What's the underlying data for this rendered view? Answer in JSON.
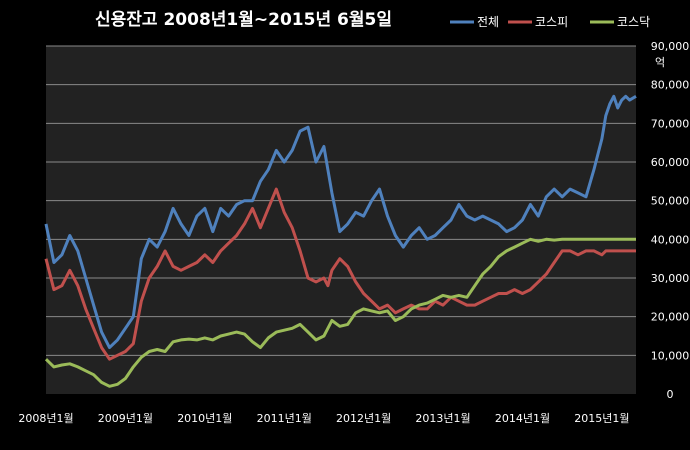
{
  "chart_data": {
    "type": "line",
    "title": "신용잔고 2008년1월~2015년 6월5일",
    "y_unit": "억",
    "ylim": [
      0,
      90000
    ],
    "y_ticks": [
      0,
      10000,
      20000,
      30000,
      40000,
      50000,
      60000,
      70000,
      80000,
      90000
    ],
    "y_tick_labels": [
      "0",
      "10,000",
      "20,000",
      "30,000",
      "40,000",
      "50,000",
      "60,000",
      "70,000",
      "80,000",
      "90,000"
    ],
    "x_tick_labels": [
      "2008년1월",
      "2009년1월",
      "2010년1월",
      "2011년1월",
      "2012년1월",
      "2013년1월",
      "2014년1월",
      "2015년1월"
    ],
    "xlim": [
      2008.0,
      2015.43
    ],
    "grid": true,
    "legend_position": "top-right",
    "x": [
      2008.0,
      2008.1,
      2008.2,
      2008.3,
      2008.4,
      2008.5,
      2008.6,
      2008.7,
      2008.8,
      2008.9,
      2009.0,
      2009.1,
      2009.2,
      2009.3,
      2009.4,
      2009.5,
      2009.6,
      2009.7,
      2009.8,
      2009.9,
      2010.0,
      2010.1,
      2010.2,
      2010.3,
      2010.4,
      2010.5,
      2010.6,
      2010.7,
      2010.8,
      2010.9,
      2011.0,
      2011.1,
      2011.2,
      2011.3,
      2011.4,
      2011.5,
      2011.55,
      2011.6,
      2011.7,
      2011.8,
      2011.9,
      2012.0,
      2012.1,
      2012.2,
      2012.3,
      2012.4,
      2012.5,
      2012.6,
      2012.7,
      2012.8,
      2012.9,
      2013.0,
      2013.1,
      2013.2,
      2013.3,
      2013.4,
      2013.5,
      2013.6,
      2013.7,
      2013.8,
      2013.9,
      2014.0,
      2014.1,
      2014.2,
      2014.3,
      2014.4,
      2014.5,
      2014.6,
      2014.7,
      2014.8,
      2014.9,
      2015.0,
      2015.05,
      2015.1,
      2015.15,
      2015.2,
      2015.25,
      2015.3,
      2015.35,
      2015.43
    ],
    "series": [
      {
        "name": "전체",
        "color": "#4F81BD",
        "values": [
          44000,
          34000,
          36000,
          41000,
          37000,
          30000,
          23000,
          16000,
          12000,
          14000,
          17000,
          20000,
          35000,
          40000,
          38000,
          42000,
          48000,
          44000,
          41000,
          46000,
          48000,
          42000,
          48000,
          46000,
          49000,
          50000,
          50000,
          55000,
          58000,
          63000,
          60000,
          63000,
          68000,
          69000,
          60000,
          64000,
          58000,
          52000,
          42000,
          44000,
          47000,
          46000,
          50000,
          53000,
          46000,
          41000,
          38000,
          41000,
          43000,
          40000,
          41000,
          43000,
          45000,
          49000,
          46000,
          45000,
          46000,
          45000,
          44000,
          42000,
          43000,
          45000,
          49000,
          46000,
          51000,
          53000,
          51000,
          53000,
          52000,
          51000,
          58000,
          66000,
          72000,
          75000,
          77000,
          74000,
          76000,
          77000,
          76000,
          77000
        ]
      },
      {
        "name": "코스피",
        "color": "#C0504D",
        "values": [
          35000,
          27000,
          28000,
          32000,
          28000,
          22000,
          17000,
          12000,
          9000,
          10000,
          11000,
          13000,
          24000,
          30000,
          33000,
          37000,
          33000,
          32000,
          33000,
          34000,
          36000,
          34000,
          37000,
          39000,
          41000,
          44000,
          48000,
          43000,
          48000,
          53000,
          47000,
          43000,
          37000,
          30000,
          29000,
          30000,
          28000,
          32000,
          35000,
          33000,
          29000,
          26000,
          24000,
          22000,
          23000,
          21000,
          22000,
          23000,
          22000,
          22000,
          24000,
          23000,
          25000,
          24000,
          23000,
          23000,
          24000,
          25000,
          26000,
          26000,
          27000,
          26000,
          27000,
          29000,
          31000,
          34000,
          37000,
          37000,
          36000,
          37000,
          37000,
          36000,
          37000,
          37000,
          37000,
          37000,
          37000,
          37000,
          37000,
          37000
        ]
      },
      {
        "name": "코스닥",
        "color": "#9BBB59",
        "values": [
          9000,
          7000,
          7500,
          7800,
          7000,
          6000,
          5000,
          3000,
          2000,
          2500,
          4000,
          7000,
          9500,
          11000,
          11500,
          11000,
          13500,
          14000,
          14200,
          14000,
          14500,
          14000,
          15000,
          15500,
          16000,
          15500,
          13500,
          12000,
          14500,
          16000,
          16500,
          17000,
          18000,
          16000,
          14000,
          15000,
          17000,
          19000,
          17500,
          18000,
          21000,
          22000,
          21500,
          21000,
          21500,
          19000,
          20000,
          22000,
          23000,
          23500,
          24500,
          25500,
          25000,
          25500,
          25000,
          28000,
          31000,
          33000,
          35500,
          37000,
          38000,
          39000,
          40000,
          39500,
          40000,
          39800,
          40000,
          40000,
          40000,
          40000,
          40000,
          40000,
          40000,
          40000,
          40000,
          40000,
          40000,
          40000,
          40000,
          40000
        ]
      }
    ]
  }
}
